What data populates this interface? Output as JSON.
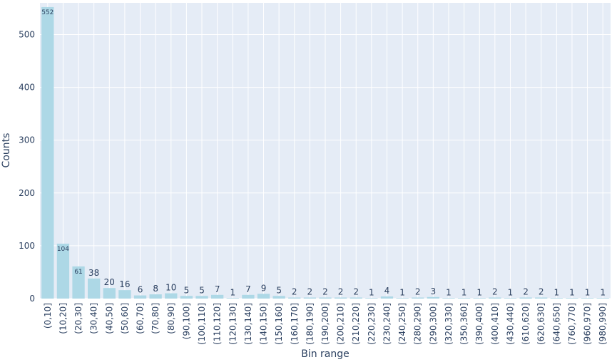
{
  "chart_data": {
    "type": "bar",
    "xlabel": "Bin range",
    "ylabel": "Counts",
    "ylim": [
      0,
      560
    ],
    "yticks": [
      0,
      100,
      200,
      300,
      400,
      500
    ],
    "grid": true,
    "categories": [
      "(0,10]",
      "(10,20]",
      "(20,30]",
      "(30,40]",
      "(40,50]",
      "(50,60]",
      "(60,70]",
      "(70,80]",
      "(80,90]",
      "(90,100]",
      "(100,110]",
      "(110,120]",
      "(120,130]",
      "(130,140]",
      "(140,150]",
      "(150,160]",
      "(160,170]",
      "(180,190]",
      "(190,200]",
      "(200,210]",
      "(210,220]",
      "(220,230]",
      "(230,240]",
      "(240,250]",
      "(280,290]",
      "(290,300]",
      "(320,330]",
      "(350,360]",
      "(390,400]",
      "(400,410]",
      "(430,440]",
      "(610,620]",
      "(620,630]",
      "(640,650]",
      "(760,770]",
      "(960,970]",
      "(980,990]"
    ],
    "values": [
      552,
      104,
      61,
      38,
      20,
      16,
      6,
      8,
      10,
      5,
      5,
      7,
      1,
      7,
      9,
      5,
      2,
      2,
      2,
      2,
      2,
      1,
      4,
      1,
      2,
      3,
      1,
      1,
      1,
      2,
      1,
      2,
      2,
      1,
      1,
      1,
      1
    ],
    "colors": {
      "bar": "#add8e6",
      "plot_bg": "#e5ecf6",
      "grid": "#ffffff",
      "text": "#2a3f5f"
    }
  }
}
